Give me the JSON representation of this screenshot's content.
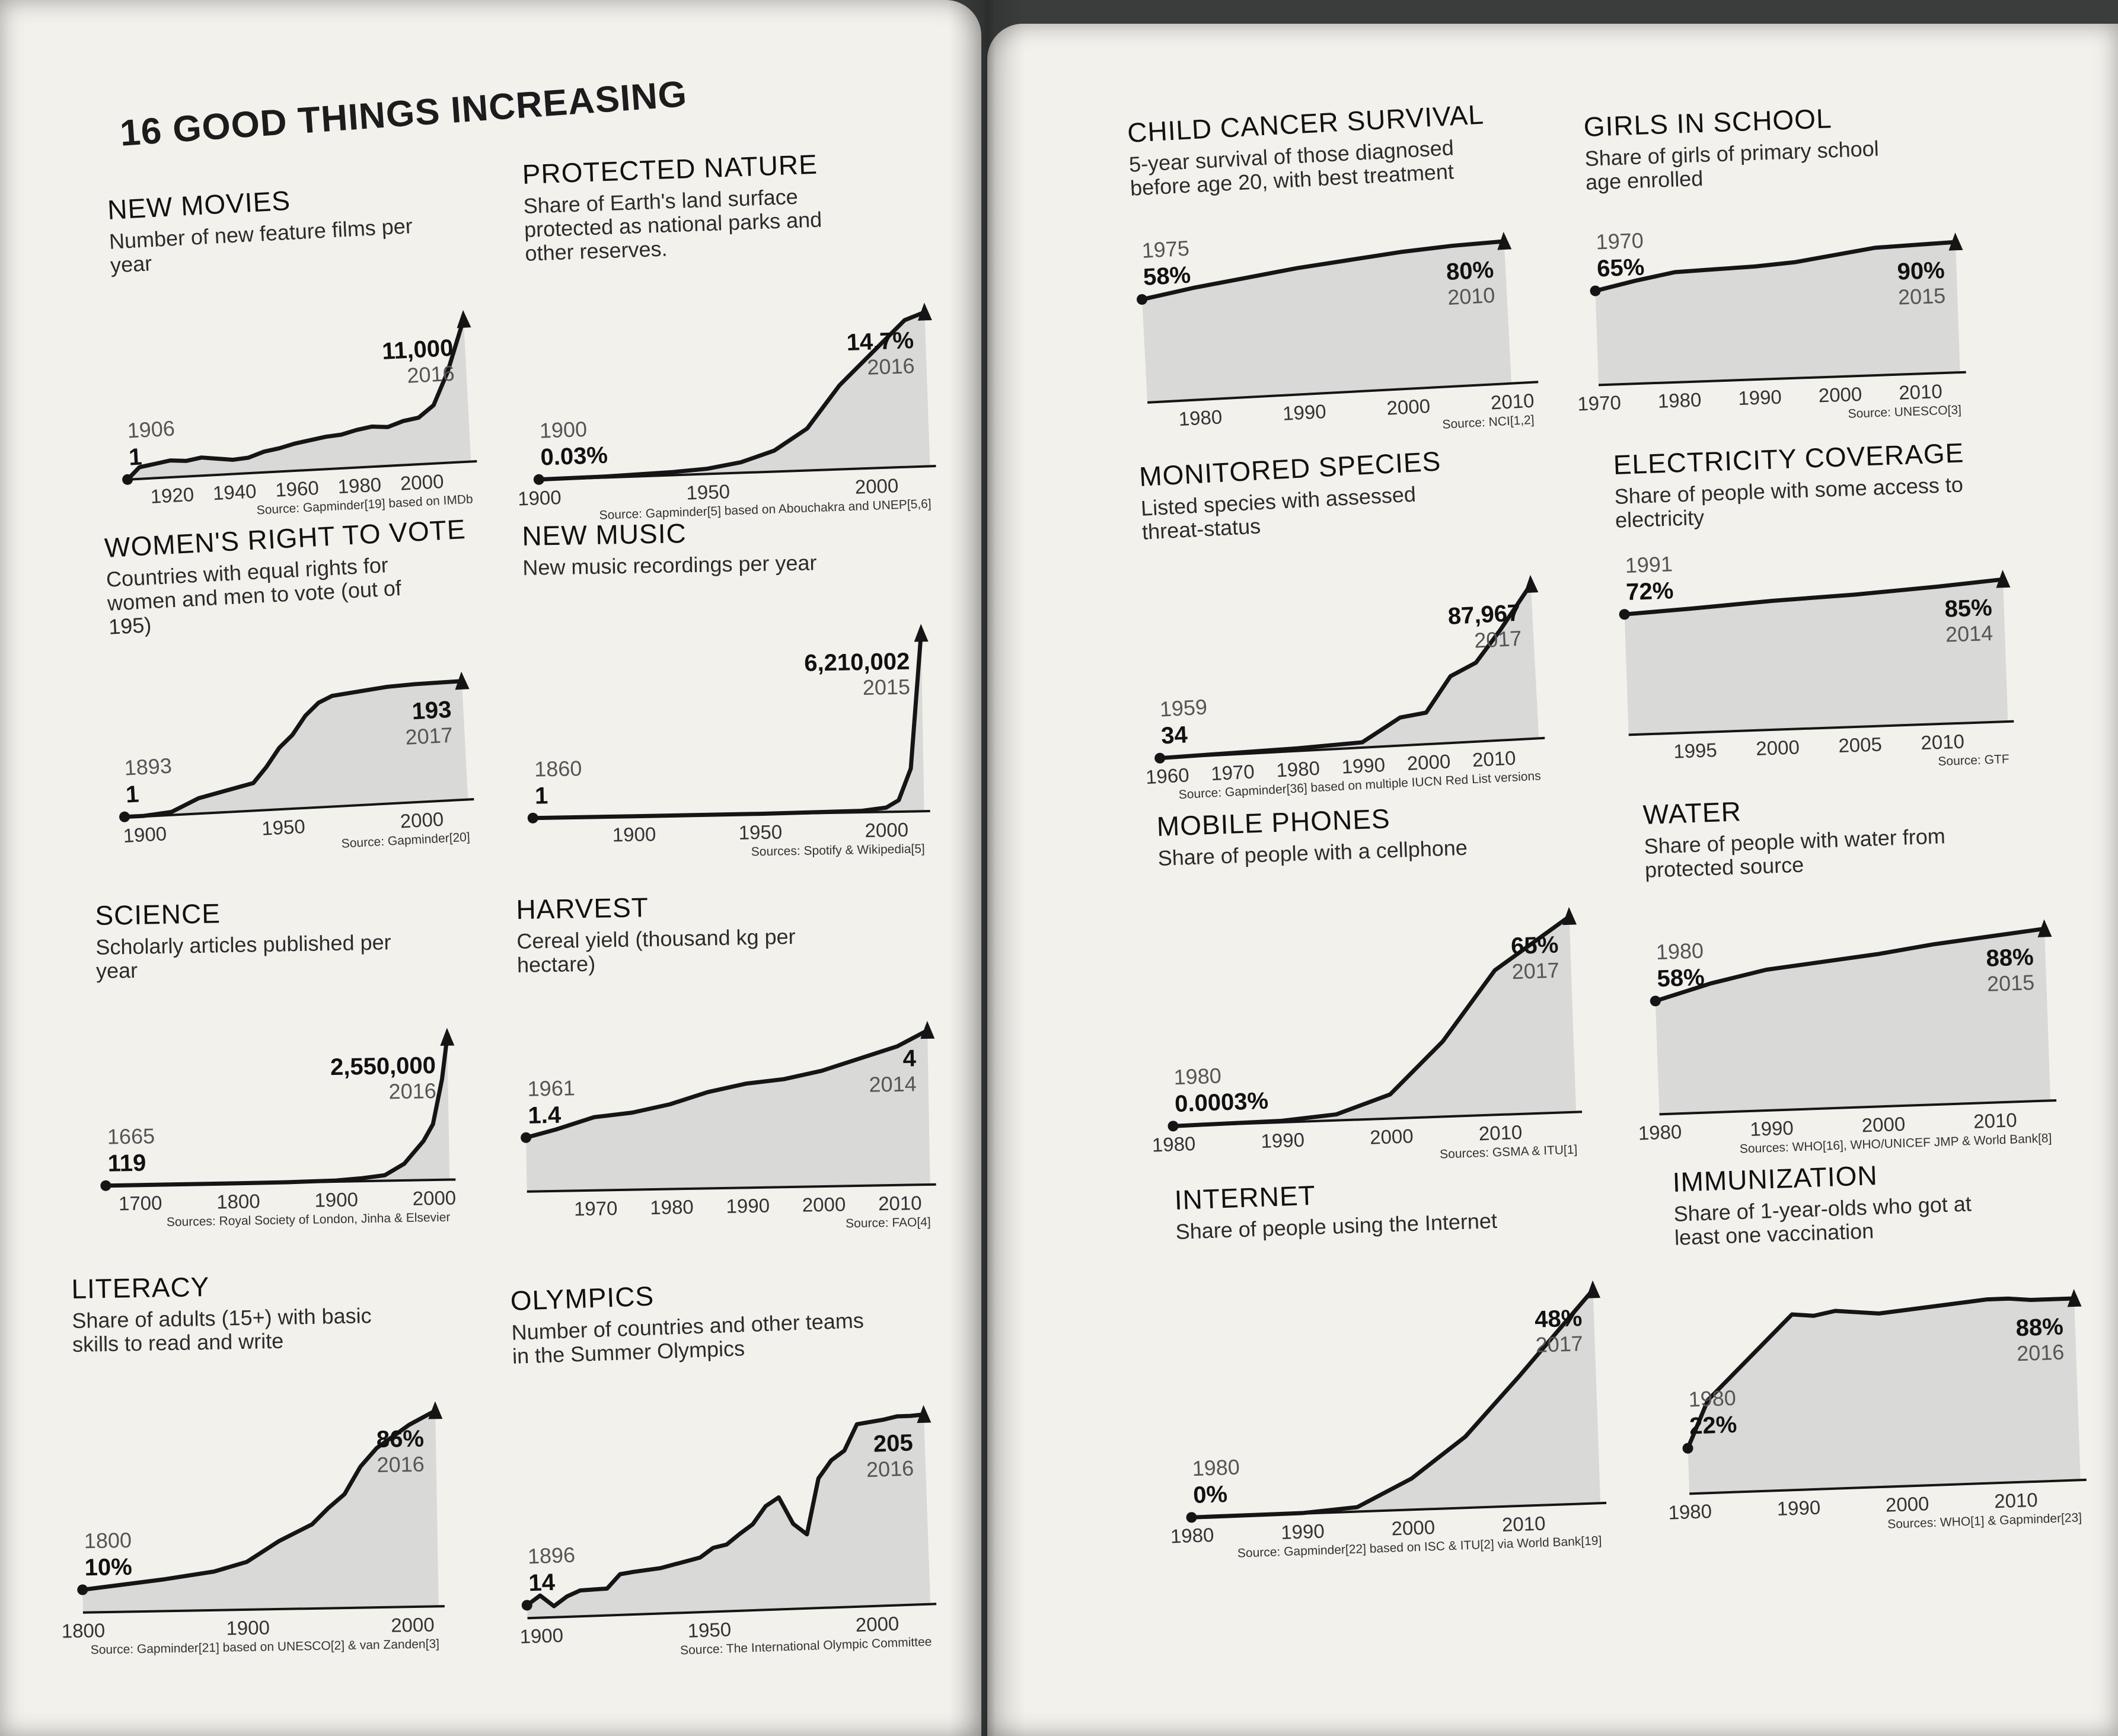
{
  "book": {
    "heading": "16 GOOD THINGS INCREASING"
  },
  "chart_data": [
    {
      "id": "new_movies",
      "type": "area",
      "title": "NEW MOVIES",
      "subtitle": "Number of new feature films per year",
      "x": [
        1906,
        1910,
        1915,
        1920,
        1925,
        1930,
        1935,
        1940,
        1945,
        1950,
        1955,
        1960,
        1965,
        1970,
        1975,
        1980,
        1985,
        1990,
        1995,
        2000,
        2005,
        2010,
        2016
      ],
      "values": [
        1,
        900,
        1100,
        1300,
        1200,
        1400,
        1250,
        1100,
        1200,
        1600,
        1800,
        2100,
        2300,
        2500,
        2600,
        2900,
        3100,
        3000,
        3400,
        3600,
        4500,
        7000,
        11000
      ],
      "xlim": [
        1906,
        2016
      ],
      "ticks": [
        "1920",
        "1940",
        "1960",
        "1980",
        "2000"
      ],
      "start": {
        "value": "1",
        "year": "1906"
      },
      "end": {
        "value": "11,000",
        "year": "2016"
      },
      "source": "Source: Gapminder[19] based on IMDb"
    },
    {
      "id": "protected_nature",
      "type": "area",
      "title": "PROTECTED NATURE",
      "subtitle": "Share of Earth's land surface protected as national parks and other reserves.",
      "x": [
        1900,
        1920,
        1940,
        1950,
        1960,
        1970,
        1980,
        1990,
        2000,
        2005,
        2010,
        2016
      ],
      "values": [
        0.03,
        0.1,
        0.3,
        0.5,
        1.0,
        2.0,
        4.0,
        8.0,
        11.0,
        12.5,
        14.0,
        14.7
      ],
      "xlim": [
        1900,
        2016
      ],
      "ticks": [
        "1900",
        "1950",
        "2000"
      ],
      "start": {
        "value": "0.03%",
        "year": "1900"
      },
      "end": {
        "value": "14.7%",
        "year": "2016"
      },
      "source": "Source: Gapminder[5] based on Abouchakra and UNEP[5,6]"
    },
    {
      "id": "womens_vote",
      "type": "area",
      "title": "WOMEN'S RIGHT TO VOTE",
      "subtitle": "Countries with equal rights for women and men to vote (out of 195)",
      "x": [
        1893,
        1900,
        1910,
        1920,
        1930,
        1940,
        1945,
        1950,
        1955,
        1960,
        1965,
        1970,
        1980,
        1990,
        2000,
        2017
      ],
      "values": [
        1,
        1,
        5,
        25,
        35,
        45,
        70,
        100,
        120,
        150,
        170,
        180,
        185,
        190,
        192,
        193
      ],
      "xlim": [
        1893,
        2017
      ],
      "ticks": [
        "1900",
        "1950",
        "2000"
      ],
      "start": {
        "value": "1",
        "year": "1893"
      },
      "end": {
        "value": "193",
        "year": "2017"
      },
      "source": "Source: Gapminder[20]"
    },
    {
      "id": "new_music",
      "type": "area",
      "title": "NEW MUSIC",
      "subtitle": "New music recordings per year",
      "x": [
        1860,
        1900,
        1950,
        1990,
        2000,
        2005,
        2010,
        2015
      ],
      "values": [
        1,
        1000,
        10000,
        50000,
        150000,
        400000,
        1500000,
        6210002
      ],
      "xlim": [
        1860,
        2015
      ],
      "ticks": [
        "1900",
        "1950",
        "2000"
      ],
      "start": {
        "value": "1",
        "year": "1860"
      },
      "end": {
        "value": "6,210,002",
        "year": "2015"
      },
      "source": "Sources: Spotify & Wikipedia[5]"
    },
    {
      "id": "science",
      "type": "area",
      "title": "SCIENCE",
      "subtitle": "Scholarly articles published per year",
      "x": [
        1665,
        1700,
        1750,
        1800,
        1850,
        1900,
        1925,
        1950,
        1970,
        1990,
        2000,
        2010,
        2016
      ],
      "values": [
        119,
        200,
        400,
        1000,
        5000,
        20000,
        50000,
        100000,
        300000,
        700000,
        1000000,
        1800000,
        2550000
      ],
      "xlim": [
        1665,
        2016
      ],
      "ticks": [
        "1700",
        "1800",
        "1900",
        "2000"
      ],
      "start": {
        "value": "119",
        "year": "1665"
      },
      "end": {
        "value": "2,550,000",
        "year": "2016"
      },
      "source": "Sources: Royal Society of London, Jinha & Elsevier"
    },
    {
      "id": "harvest",
      "type": "area",
      "title": "HARVEST",
      "subtitle": "Cereal yield (thousand kg per hectare)",
      "x": [
        1961,
        1965,
        1970,
        1975,
        1980,
        1985,
        1990,
        1995,
        2000,
        2005,
        2010,
        2014
      ],
      "values": [
        1.4,
        1.6,
        1.9,
        2.0,
        2.2,
        2.5,
        2.7,
        2.8,
        3.0,
        3.3,
        3.6,
        4.0
      ],
      "xlim": [
        1961,
        2014
      ],
      "ticks": [
        "1970",
        "1980",
        "1990",
        "2000",
        "2010"
      ],
      "start": {
        "value": "1.4",
        "year": "1961"
      },
      "end": {
        "value": "4",
        "year": "2014"
      },
      "source": "Source: FAO[4]"
    },
    {
      "id": "literacy",
      "type": "area",
      "title": "LITERACY",
      "subtitle": "Share of adults (15+) with basic skills to read and write",
      "x": [
        1800,
        1850,
        1880,
        1900,
        1920,
        1940,
        1950,
        1960,
        1970,
        1980,
        1990,
        2000,
        2016
      ],
      "values": [
        10,
        14,
        17,
        21,
        30,
        37,
        44,
        50,
        62,
        70,
        75,
        80,
        86
      ],
      "xlim": [
        1800,
        2016
      ],
      "ticks": [
        "1800",
        "1900",
        "2000"
      ],
      "start": {
        "value": "10%",
        "year": "1800"
      },
      "end": {
        "value": "86%",
        "year": "2016"
      },
      "source": "Source: Gapminder[21] based on UNESCO[2] & van Zanden[3]"
    },
    {
      "id": "olympics",
      "type": "area",
      "title": "OLYMPICS",
      "subtitle": "Number of countries and other teams in the Summer Olympics",
      "x": [
        1896,
        1900,
        1904,
        1908,
        1912,
        1920,
        1924,
        1928,
        1936,
        1948,
        1952,
        1956,
        1960,
        1964,
        1968,
        1972,
        1976,
        1980,
        1984,
        1988,
        1992,
        1996,
        2000,
        2004,
        2008,
        2012,
        2016
      ],
      "values": [
        14,
        24,
        12,
        22,
        28,
        29,
        44,
        46,
        49,
        59,
        69,
        72,
        83,
        93,
        112,
        121,
        92,
        80,
        140,
        159,
        169,
        197,
        199,
        201,
        204,
        204,
        205
      ],
      "xlim": [
        1896,
        2016
      ],
      "ticks": [
        "1900",
        "1950",
        "2000"
      ],
      "start": {
        "value": "14",
        "year": "1896"
      },
      "end": {
        "value": "205",
        "year": "2016"
      },
      "source": "Source: The International Olympic Committee"
    },
    {
      "id": "child_cancer",
      "type": "area",
      "title": "CHILD CANCER SURVIVAL",
      "subtitle": "5-year survival of those diagnosed before age 20, with best treatment",
      "x": [
        1975,
        1980,
        1985,
        1990,
        1995,
        2000,
        2005,
        2010
      ],
      "values": [
        58,
        63,
        67,
        71,
        74,
        77,
        79,
        80
      ],
      "xlim": [
        1975,
        2012
      ],
      "ticks": [
        "1980",
        "1990",
        "2000",
        "2010"
      ],
      "start": {
        "value": "58%",
        "year": "1975"
      },
      "end": {
        "value": "80%",
        "year": "2010"
      },
      "source": "Source: NCI[1,2]"
    },
    {
      "id": "girls_school",
      "type": "area",
      "title": "GIRLS IN SCHOOL",
      "subtitle": "Share of girls of primary school age enrolled",
      "x": [
        1970,
        1975,
        1980,
        1985,
        1990,
        1995,
        2000,
        2005,
        2010,
        2015
      ],
      "values": [
        65,
        71,
        76,
        77,
        78,
        80,
        84,
        88,
        89,
        90
      ],
      "xlim": [
        1970,
        2015
      ],
      "ticks": [
        "1970",
        "1980",
        "1990",
        "2000",
        "2010"
      ],
      "start": {
        "value": "65%",
        "year": "1970"
      },
      "end": {
        "value": "90%",
        "year": "2015"
      },
      "source": "Source: UNESCO[3]"
    },
    {
      "id": "monitored_species",
      "type": "area",
      "title": "MONITORED SPECIES",
      "subtitle": "Listed species with assessed threat-status",
      "x": [
        1959,
        1970,
        1980,
        1990,
        1996,
        2000,
        2004,
        2008,
        2012,
        2017
      ],
      "values": [
        34,
        800,
        1500,
        3000,
        16000,
        18000,
        38000,
        45000,
        63000,
        87967
      ],
      "xlim": [
        1959,
        2017
      ],
      "ticks": [
        "1960",
        "1970",
        "1980",
        "1990",
        "2000",
        "2010"
      ],
      "start": {
        "value": "34",
        "year": "1959"
      },
      "end": {
        "value": "87,967",
        "year": "2017"
      },
      "source": "Source: Gapminder[36] based on multiple IUCN Red List versions"
    },
    {
      "id": "electricity",
      "type": "area",
      "title": "ELECTRICITY COVERAGE",
      "subtitle": "Share of people with some access to electricity",
      "x": [
        1991,
        1995,
        2000,
        2005,
        2010,
        2014
      ],
      "values": [
        72,
        74,
        77,
        79,
        82,
        85
      ],
      "xlim": [
        1991,
        2014
      ],
      "ticks": [
        "1995",
        "2000",
        "2005",
        "2010"
      ],
      "start": {
        "value": "72%",
        "year": "1991"
      },
      "end": {
        "value": "85%",
        "year": "2014"
      },
      "source": "Source: GTF"
    },
    {
      "id": "mobile_phones",
      "type": "area",
      "title": "MOBILE PHONES",
      "subtitle": "Share of people with a cellphone",
      "x": [
        1980,
        1990,
        1995,
        2000,
        2005,
        2010,
        2017
      ],
      "values": [
        0.0003,
        0.5,
        2,
        8,
        25,
        48,
        65
      ],
      "xlim": [
        1980,
        2017
      ],
      "ticks": [
        "1980",
        "1990",
        "2000",
        "2010"
      ],
      "start": {
        "value": "0.0003%",
        "year": "1980"
      },
      "end": {
        "value": "65%",
        "year": "2017"
      },
      "source": "Sources: GSMA & ITU[1]"
    },
    {
      "id": "water",
      "type": "area",
      "title": "WATER",
      "subtitle": "Share of people with water from protected source",
      "x": [
        1980,
        1985,
        1990,
        1995,
        2000,
        2005,
        2010,
        2015
      ],
      "values": [
        58,
        66,
        72,
        75,
        78,
        82,
        85,
        88
      ],
      "xlim": [
        1980,
        2015
      ],
      "ticks": [
        "1980",
        "1990",
        "2000",
        "2010"
      ],
      "start": {
        "value": "58%",
        "year": "1980"
      },
      "end": {
        "value": "88%",
        "year": "2015"
      },
      "source": "Sources: WHO[16], WHO/UNICEF JMP & World Bank[8]"
    },
    {
      "id": "internet",
      "type": "area",
      "title": "INTERNET",
      "subtitle": "Share of people using the Internet",
      "x": [
        1980,
        1990,
        1995,
        2000,
        2005,
        2010,
        2017
      ],
      "values": [
        0,
        0.1,
        1,
        7,
        16,
        29,
        48
      ],
      "xlim": [
        1980,
        2017
      ],
      "ticks": [
        "1980",
        "1990",
        "2000",
        "2010"
      ],
      "start": {
        "value": "0%",
        "year": "1980"
      },
      "end": {
        "value": "48%",
        "year": "2017"
      },
      "source": "Source: Gapminder[22] based on ISC & ITU[2] via World Bank[19]"
    },
    {
      "id": "immunization",
      "type": "area",
      "title": "IMMUNIZATION",
      "subtitle": "Share of 1-year-olds who got at least one vaccination",
      "x": [
        1980,
        1982,
        1984,
        1986,
        1988,
        1990,
        1992,
        1994,
        1996,
        1998,
        2000,
        2002,
        2004,
        2006,
        2008,
        2010,
        2012,
        2014,
        2016
      ],
      "values": [
        22,
        45,
        55,
        65,
        75,
        85,
        84,
        86,
        85,
        84,
        85,
        86,
        87,
        88,
        89,
        89,
        88,
        88,
        88
      ],
      "xlim": [
        1980,
        2016
      ],
      "ticks": [
        "1980",
        "1990",
        "2000",
        "2010"
      ],
      "start": {
        "value": "22%",
        "year": "1980"
      },
      "end": {
        "value": "88%",
        "year": "2016"
      },
      "source": "Sources: WHO[1] & Gapminder[23]"
    }
  ]
}
